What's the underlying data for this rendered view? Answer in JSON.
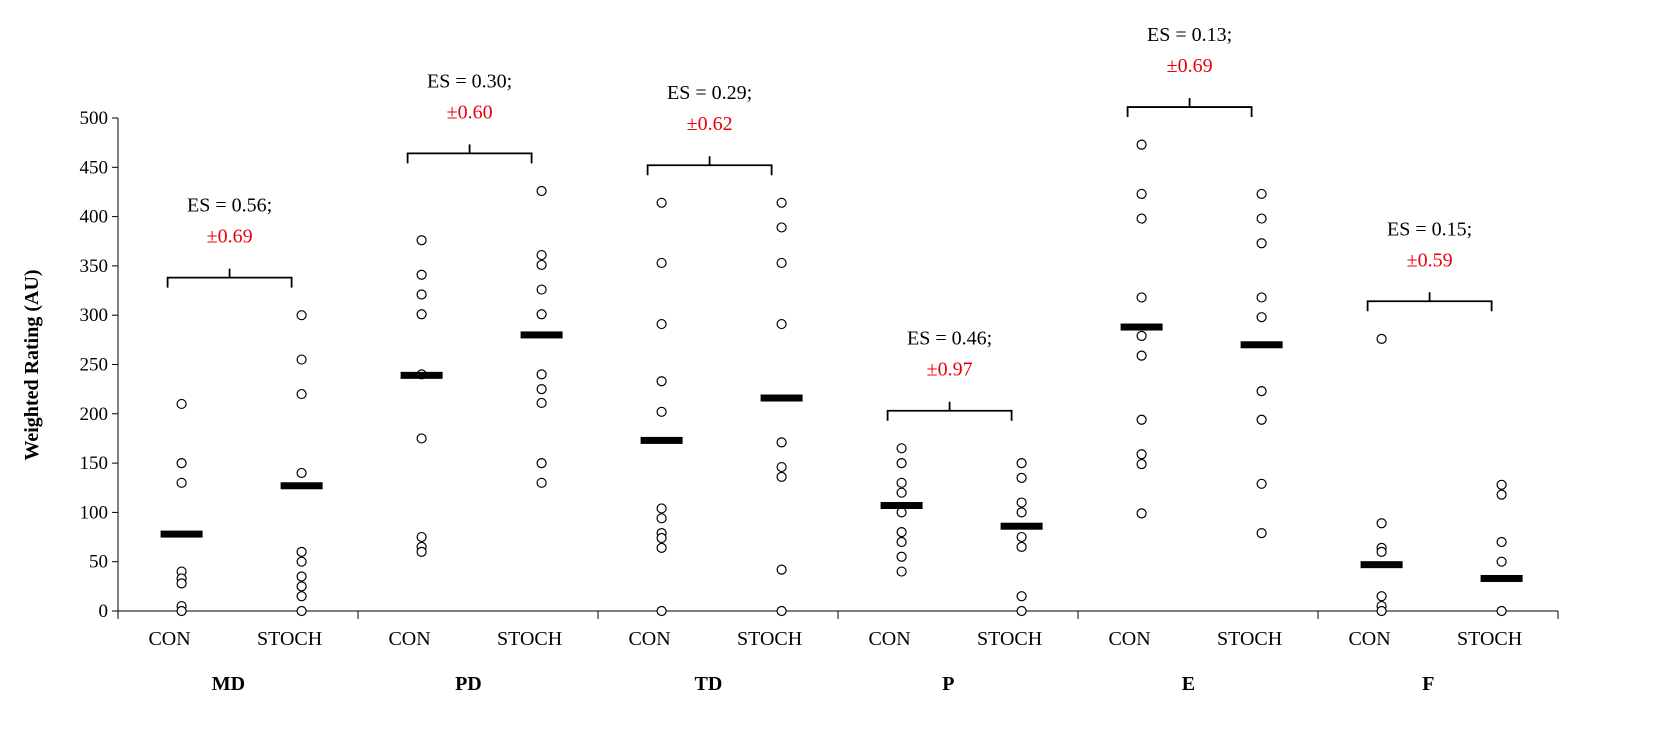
{
  "chart_data": {
    "type": "scatter",
    "ylabel": "Weighted Rating (AU)",
    "ylim": [
      0,
      500
    ],
    "yticks": [
      "0",
      "50",
      "100",
      "150",
      "200",
      "250",
      "300",
      "350",
      "400",
      "450",
      "500"
    ],
    "grid": false,
    "legend": "none",
    "colors": {
      "points": "#000000",
      "mean": "#000000",
      "ci_text": "#e8000b"
    },
    "subcategories": [
      "CON",
      "STOCH"
    ],
    "groups": [
      {
        "name": "MD",
        "es": "ES = 0.56;",
        "ci": "±0.69",
        "CON": {
          "values": [
            210,
            150,
            130,
            40,
            33,
            28,
            5,
            0
          ],
          "mean": 78
        },
        "STOCH": {
          "values": [
            300,
            255,
            220,
            140,
            60,
            50,
            35,
            25,
            15,
            0
          ],
          "mean": 127
        }
      },
      {
        "name": "PD",
        "es": "ES = 0.30;",
        "ci": "±0.60",
        "CON": {
          "values": [
            376,
            341,
            321,
            301,
            240,
            175,
            75,
            65,
            60
          ],
          "mean": 239
        },
        "STOCH": {
          "values": [
            426,
            361,
            351,
            326,
            301,
            240,
            225,
            211,
            150,
            130
          ],
          "mean": 280
        }
      },
      {
        "name": "TD",
        "es": "ES = 0.29;",
        "ci": "±0.62",
        "CON": {
          "values": [
            414,
            353,
            291,
            233,
            202,
            104,
            94,
            79,
            74,
            64,
            0
          ],
          "mean": 173
        },
        "STOCH": {
          "values": [
            414,
            389,
            353,
            291,
            171,
            146,
            136,
            42,
            0
          ],
          "mean": 216
        }
      },
      {
        "name": "P",
        "es": "ES = 0.46;",
        "ci": "±0.97",
        "CON": {
          "values": [
            165,
            150,
            130,
            120,
            100,
            80,
            70,
            55,
            40
          ],
          "mean": 107
        },
        "STOCH": {
          "values": [
            150,
            135,
            110,
            100,
            75,
            65,
            15,
            0
          ],
          "mean": 86
        }
      },
      {
        "name": "E",
        "es": "ES = 0.13;",
        "ci": "±0.69",
        "CON": {
          "values": [
            473,
            423,
            398,
            318,
            279,
            259,
            194,
            159,
            149,
            99
          ],
          "mean": 288
        },
        "STOCH": {
          "values": [
            423,
            398,
            373,
            318,
            298,
            223,
            194,
            129,
            79
          ],
          "mean": 270
        }
      },
      {
        "name": "F",
        "es": "ES = 0.15;",
        "ci": "±0.59",
        "CON": {
          "values": [
            276,
            89,
            64,
            60,
            15,
            5,
            0
          ],
          "mean": 47
        },
        "STOCH": {
          "values": [
            128,
            118,
            70,
            50,
            0
          ],
          "mean": 33
        }
      }
    ]
  }
}
